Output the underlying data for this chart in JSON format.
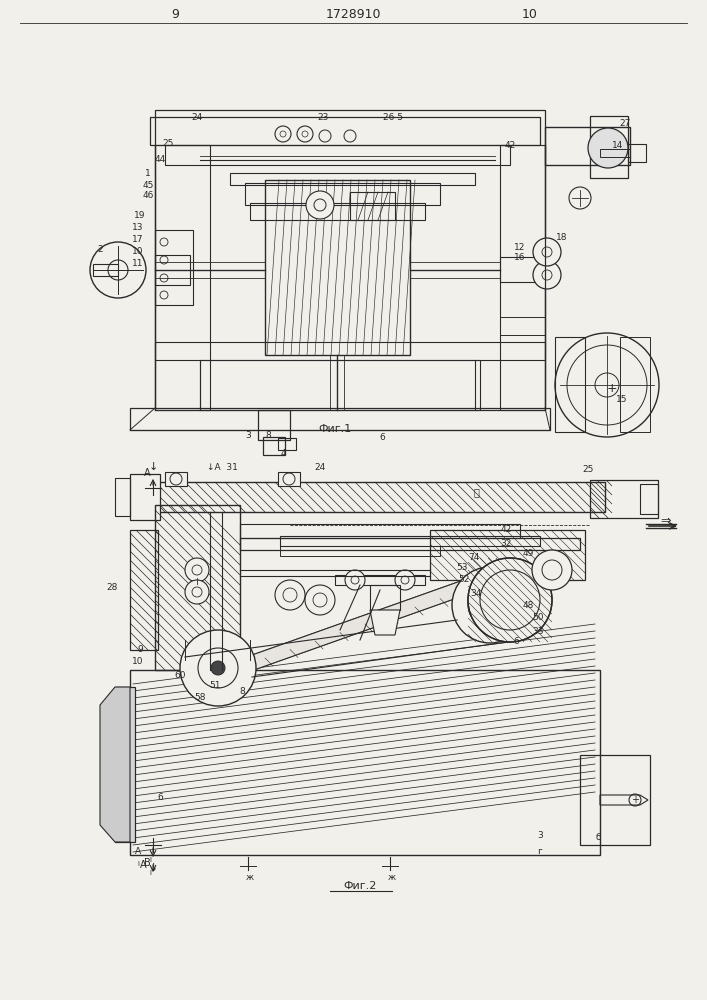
{
  "bg": "#f2f0eb",
  "lc": "#2a2a2a",
  "page_left": "9",
  "patent_no": "1728910",
  "page_right": "10",
  "caption1": "Фиг.1",
  "caption2": "Фиг.2"
}
